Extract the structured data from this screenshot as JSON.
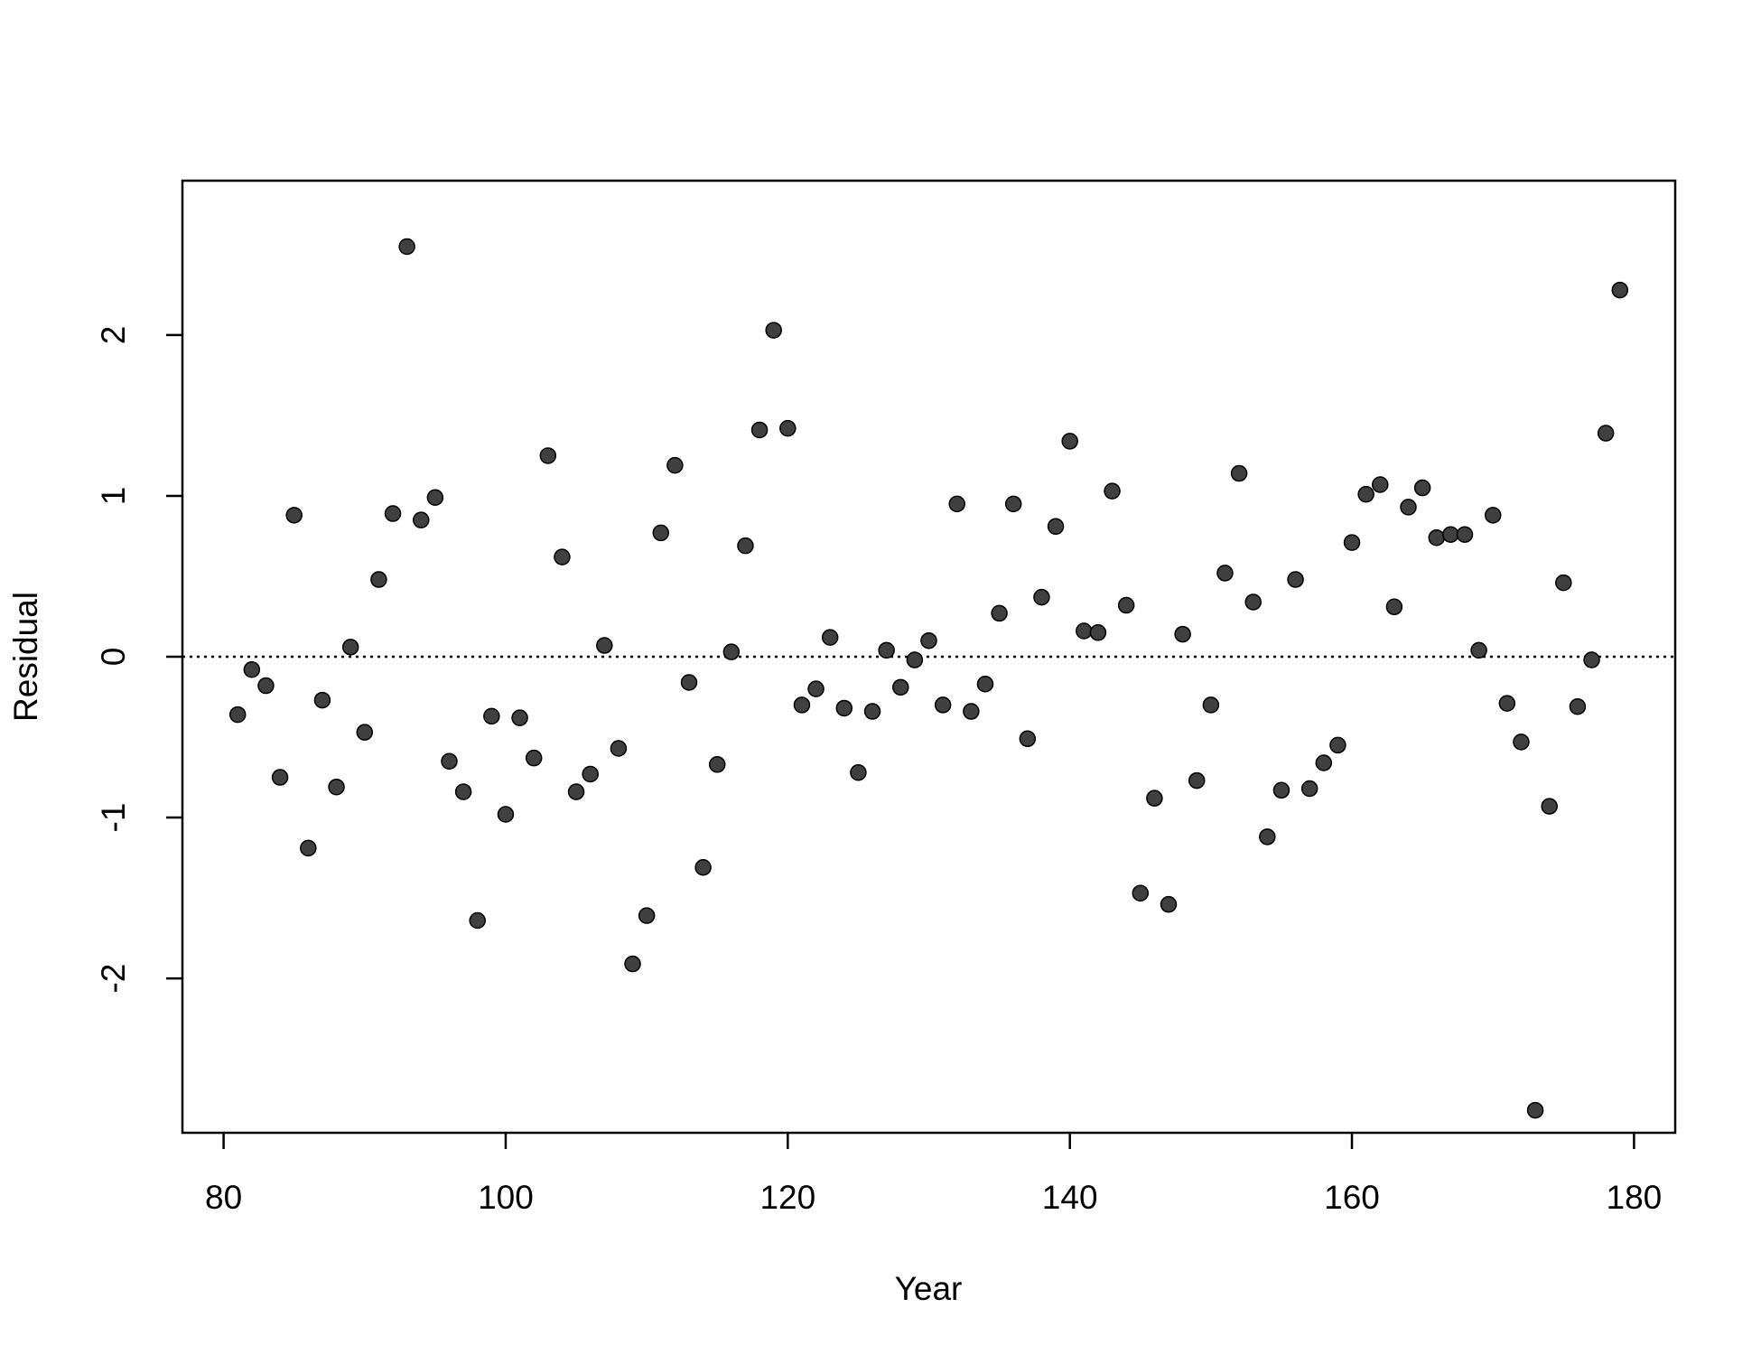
{
  "chart_data": {
    "type": "scatter",
    "x_label": "Year",
    "y_label": "Residual",
    "x": [
      81,
      82,
      83,
      84,
      85,
      86,
      87,
      88,
      89,
      90,
      91,
      92,
      93,
      94,
      95,
      96,
      97,
      98,
      99,
      100,
      101,
      102,
      103,
      104,
      105,
      106,
      107,
      108,
      109,
      110,
      111,
      112,
      113,
      114,
      115,
      116,
      117,
      118,
      119,
      120,
      121,
      122,
      123,
      124,
      125,
      126,
      127,
      128,
      129,
      130,
      131,
      132,
      133,
      134,
      135,
      136,
      137,
      138,
      139,
      140,
      141,
      142,
      143,
      144,
      145,
      146,
      147,
      148,
      149,
      150,
      151,
      152,
      153,
      154,
      155,
      156,
      157,
      158,
      159,
      160,
      161,
      162,
      163,
      164,
      165,
      166,
      167,
      168,
      169,
      170,
      171,
      172,
      173,
      174,
      175,
      176,
      177,
      178,
      179
    ],
    "values": [
      -0.36,
      -0.08,
      -0.18,
      -0.75,
      0.88,
      -1.19,
      -0.27,
      -0.81,
      0.06,
      -0.47,
      0.48,
      0.89,
      2.55,
      0.85,
      0.99,
      -0.65,
      -0.84,
      -1.64,
      -0.37,
      -0.98,
      -0.38,
      -0.63,
      1.25,
      0.62,
      -0.84,
      -0.73,
      0.07,
      -0.57,
      -1.91,
      -1.61,
      0.77,
      1.19,
      -0.16,
      -1.31,
      -0.67,
      0.03,
      0.69,
      1.41,
      2.03,
      1.42,
      -0.3,
      -0.2,
      0.12,
      -0.32,
      -0.72,
      -0.34,
      0.04,
      -0.19,
      -0.02,
      0.1,
      -0.3,
      0.95,
      -0.34,
      -0.17,
      0.27,
      0.95,
      -0.51,
      0.37,
      0.81,
      1.34,
      0.16,
      0.15,
      1.03,
      0.32,
      -1.47,
      -0.88,
      -1.54,
      0.14,
      -0.77,
      -0.3,
      0.52,
      1.14,
      0.34,
      -1.12,
      -0.83,
      0.48,
      -0.82,
      -0.66,
      -0.55,
      0.71,
      1.01,
      1.07,
      0.31,
      0.93,
      1.05,
      0.74,
      0.76,
      0.76,
      0.04,
      0.88,
      -0.29,
      -0.53,
      -2.82,
      -0.93,
      0.46,
      -0.31,
      -0.02,
      1.39,
      2.28
    ],
    "color": "#404040",
    "xlim": [
      77.08,
      182.92
    ],
    "xticks": [
      80,
      100,
      120,
      140,
      160,
      180
    ],
    "ylim": [
      -2.96,
      2.96
    ],
    "yticks": [
      -2,
      -1,
      0,
      1,
      2
    ],
    "hline": 0,
    "grid": false
  }
}
